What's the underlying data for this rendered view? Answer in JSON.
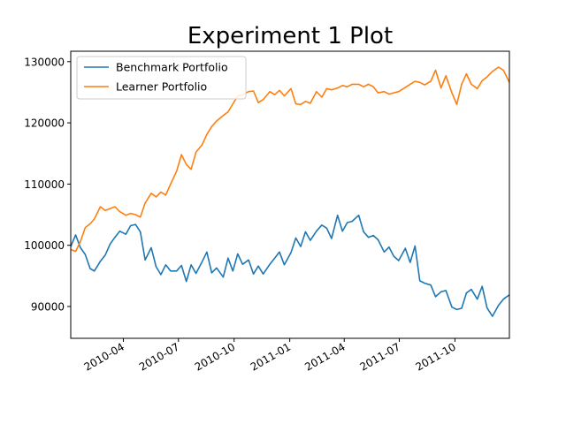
{
  "chart_data": {
    "type": "line",
    "title": "Experiment 1 Plot",
    "xlabel": "",
    "ylabel": "",
    "x_axis": "date",
    "xlim": [
      "2010-01-04",
      "2011-12-30"
    ],
    "ylim": [
      84800,
      131700
    ],
    "y_ticks": [
      90000,
      100000,
      110000,
      120000,
      130000
    ],
    "y_tick_labels": [
      "90000",
      "100000",
      "110000",
      "120000",
      "130000"
    ],
    "x_ticks": [
      "2010-04-01",
      "2010-07-01",
      "2010-10-01",
      "2011-01-01",
      "2011-04-01",
      "2011-07-01",
      "2011-10-01"
    ],
    "x_tick_labels": [
      "2010-04",
      "2010-07",
      "2010-10",
      "2011-01",
      "2011-04",
      "2011-07",
      "2011-10"
    ],
    "grid": false,
    "legend_position": "top-left",
    "series": [
      {
        "name": "Benchmark Portfolio",
        "color": "#1f77b4",
        "x": [
          "2010-01-04",
          "2010-01-12",
          "2010-01-20",
          "2010-01-28",
          "2010-02-05",
          "2010-02-12",
          "2010-02-22",
          "2010-03-02",
          "2010-03-10",
          "2010-03-18",
          "2010-03-26",
          "2010-04-05",
          "2010-04-13",
          "2010-04-21",
          "2010-04-29",
          "2010-05-07",
          "2010-05-17",
          "2010-05-25",
          "2010-06-02",
          "2010-06-10",
          "2010-06-18",
          "2010-06-28",
          "2010-07-06",
          "2010-07-14",
          "2010-07-22",
          "2010-07-30",
          "2010-08-09",
          "2010-08-17",
          "2010-08-25",
          "2010-09-02",
          "2010-09-13",
          "2010-09-21",
          "2010-09-29",
          "2010-10-07",
          "2010-10-15",
          "2010-10-25",
          "2010-11-02",
          "2010-11-10",
          "2010-11-18",
          "2010-11-29",
          "2010-12-07",
          "2010-12-15",
          "2010-12-23",
          "2011-01-03",
          "2011-01-11",
          "2011-01-19",
          "2011-01-27",
          "2011-02-04",
          "2011-02-14",
          "2011-02-23",
          "2011-03-03",
          "2011-03-11",
          "2011-03-21",
          "2011-03-29",
          "2011-04-06",
          "2011-04-14",
          "2011-04-25",
          "2011-05-03",
          "2011-05-11",
          "2011-05-19",
          "2011-05-27",
          "2011-06-06",
          "2011-06-14",
          "2011-06-22",
          "2011-06-30",
          "2011-07-11",
          "2011-07-19",
          "2011-07-27",
          "2011-08-04",
          "2011-08-12",
          "2011-08-22",
          "2011-08-30",
          "2011-09-08",
          "2011-09-16",
          "2011-09-26",
          "2011-10-04",
          "2011-10-12",
          "2011-10-20",
          "2011-10-28",
          "2011-11-07",
          "2011-11-15",
          "2011-11-23",
          "2011-12-02",
          "2011-12-12",
          "2011-12-20",
          "2011-12-30"
        ],
        "values": [
          99800,
          101700,
          99600,
          98500,
          96200,
          95800,
          97400,
          98400,
          100200,
          101300,
          102300,
          101800,
          103200,
          103400,
          102200,
          97600,
          99600,
          96500,
          95200,
          96800,
          95800,
          95800,
          96700,
          94100,
          96800,
          95400,
          97300,
          98900,
          95500,
          96300,
          94800,
          97900,
          95800,
          98600,
          96900,
          97600,
          95300,
          96600,
          95300,
          96900,
          97900,
          98900,
          96800,
          98800,
          101200,
          99800,
          102200,
          100800,
          102300,
          103300,
          102800,
          101100,
          104900,
          102300,
          103700,
          103900,
          104900,
          102200,
          101300,
          101600,
          100900,
          98900,
          99700,
          98200,
          97500,
          99500,
          97200,
          99900,
          94200,
          93800,
          93500,
          91600,
          92400,
          92600,
          89900,
          89500,
          89700,
          92200,
          92800,
          91200,
          93300,
          89800,
          88400,
          90200,
          91200,
          91900
        ]
      },
      {
        "name": "Learner Portfolio",
        "color": "#ff7f0e",
        "x": [
          "2010-01-04",
          "2010-01-12",
          "2010-01-20",
          "2010-01-28",
          "2010-02-05",
          "2010-02-12",
          "2010-02-22",
          "2010-03-02",
          "2010-03-10",
          "2010-03-18",
          "2010-03-26",
          "2010-04-05",
          "2010-04-13",
          "2010-04-21",
          "2010-04-29",
          "2010-05-07",
          "2010-05-17",
          "2010-05-25",
          "2010-06-02",
          "2010-06-10",
          "2010-06-18",
          "2010-06-28",
          "2010-07-06",
          "2010-07-14",
          "2010-07-22",
          "2010-07-30",
          "2010-08-09",
          "2010-08-17",
          "2010-08-25",
          "2010-09-02",
          "2010-09-13",
          "2010-09-21",
          "2010-09-29",
          "2010-10-07",
          "2010-10-15",
          "2010-10-25",
          "2010-11-02",
          "2010-11-10",
          "2010-11-18",
          "2010-11-29",
          "2010-12-07",
          "2010-12-15",
          "2010-12-23",
          "2011-01-03",
          "2011-01-11",
          "2011-01-19",
          "2011-01-27",
          "2011-02-04",
          "2011-02-14",
          "2011-02-23",
          "2011-03-03",
          "2011-03-11",
          "2011-03-21",
          "2011-03-29",
          "2011-04-06",
          "2011-04-14",
          "2011-04-25",
          "2011-05-03",
          "2011-05-11",
          "2011-05-19",
          "2011-05-27",
          "2011-06-06",
          "2011-06-14",
          "2011-06-22",
          "2011-06-30",
          "2011-07-11",
          "2011-07-19",
          "2011-07-27",
          "2011-08-04",
          "2011-08-12",
          "2011-08-22",
          "2011-08-30",
          "2011-09-08",
          "2011-09-16",
          "2011-09-26",
          "2011-10-04",
          "2011-10-12",
          "2011-10-20",
          "2011-10-28",
          "2011-11-07",
          "2011-11-15",
          "2011-11-23",
          "2011-12-02",
          "2011-12-12",
          "2011-12-20",
          "2011-12-30"
        ],
        "values": [
          99300,
          99000,
          100600,
          102900,
          103500,
          104300,
          106300,
          105700,
          106000,
          106300,
          105500,
          104900,
          105200,
          105000,
          104600,
          106900,
          108500,
          107900,
          108700,
          108200,
          110000,
          112100,
          114800,
          113200,
          112400,
          115200,
          116400,
          118100,
          119400,
          120300,
          121200,
          121800,
          123100,
          124400,
          124600,
          125100,
          125200,
          123300,
          123800,
          125100,
          124600,
          125300,
          124400,
          125600,
          123100,
          123000,
          123500,
          123200,
          125100,
          124200,
          125600,
          125400,
          125700,
          126100,
          125900,
          126300,
          126300,
          125900,
          126300,
          125900,
          124900,
          125100,
          124700,
          124900,
          125100,
          125800,
          126300,
          126800,
          126600,
          126200,
          126800,
          128600,
          125700,
          127700,
          124900,
          123000,
          126300,
          128000,
          126300,
          125600,
          126900,
          127500,
          128400,
          129100,
          128600,
          126600
        ]
      }
    ]
  }
}
